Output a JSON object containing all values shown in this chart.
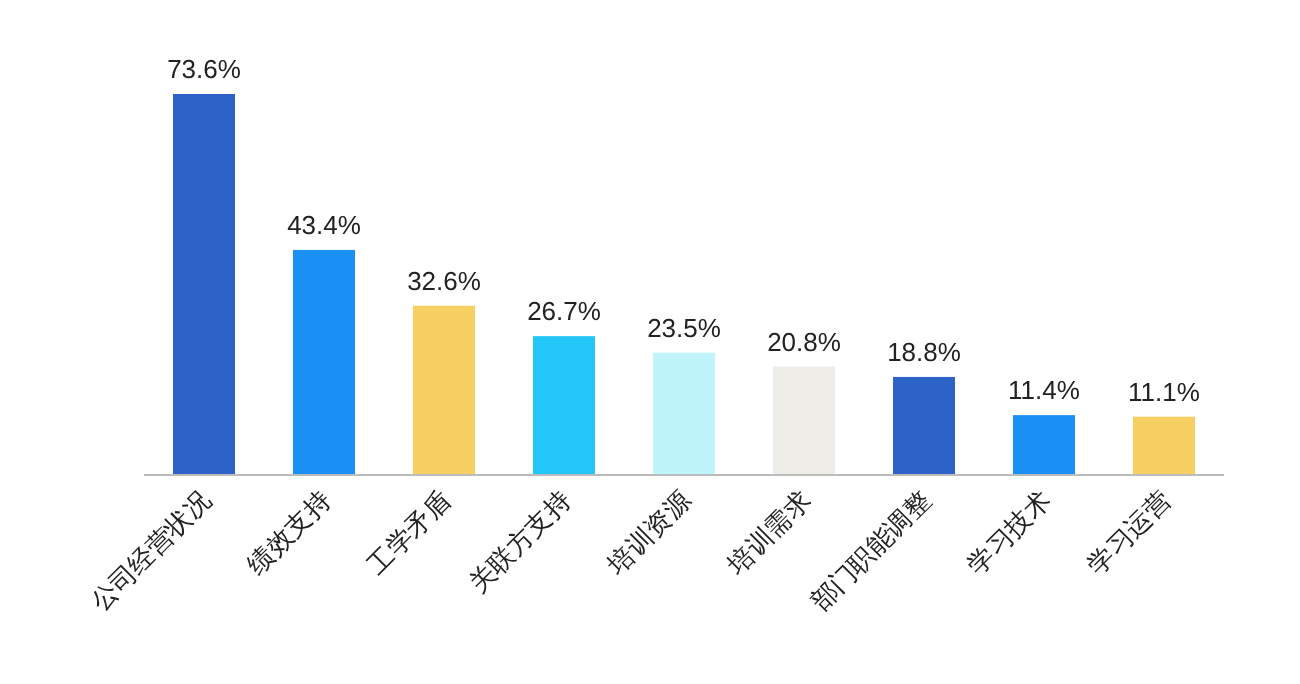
{
  "chart_data": {
    "type": "bar",
    "categories": [
      "公司经营状况",
      "绩效支持",
      "工学矛盾",
      "关联方支持",
      "培训资源",
      "培训需求",
      "部门职能调整",
      "学习技术",
      "学习运营"
    ],
    "values": [
      73.6,
      43.4,
      32.6,
      26.7,
      23.5,
      20.8,
      18.8,
      11.4,
      11.1
    ],
    "colors": [
      "#2d63c8",
      "#1a90f5",
      "#f6d062",
      "#22c6f7",
      "#bff4fb",
      "#eeede8",
      "#2d63c8",
      "#1a90f5",
      "#f6d062"
    ],
    "value_labels": [
      "73.6%",
      "43.4%",
      "32.6%",
      "26.7%",
      "23.5%",
      "20.8%",
      "18.8%",
      "11.4%",
      "11.1%"
    ]
  }
}
